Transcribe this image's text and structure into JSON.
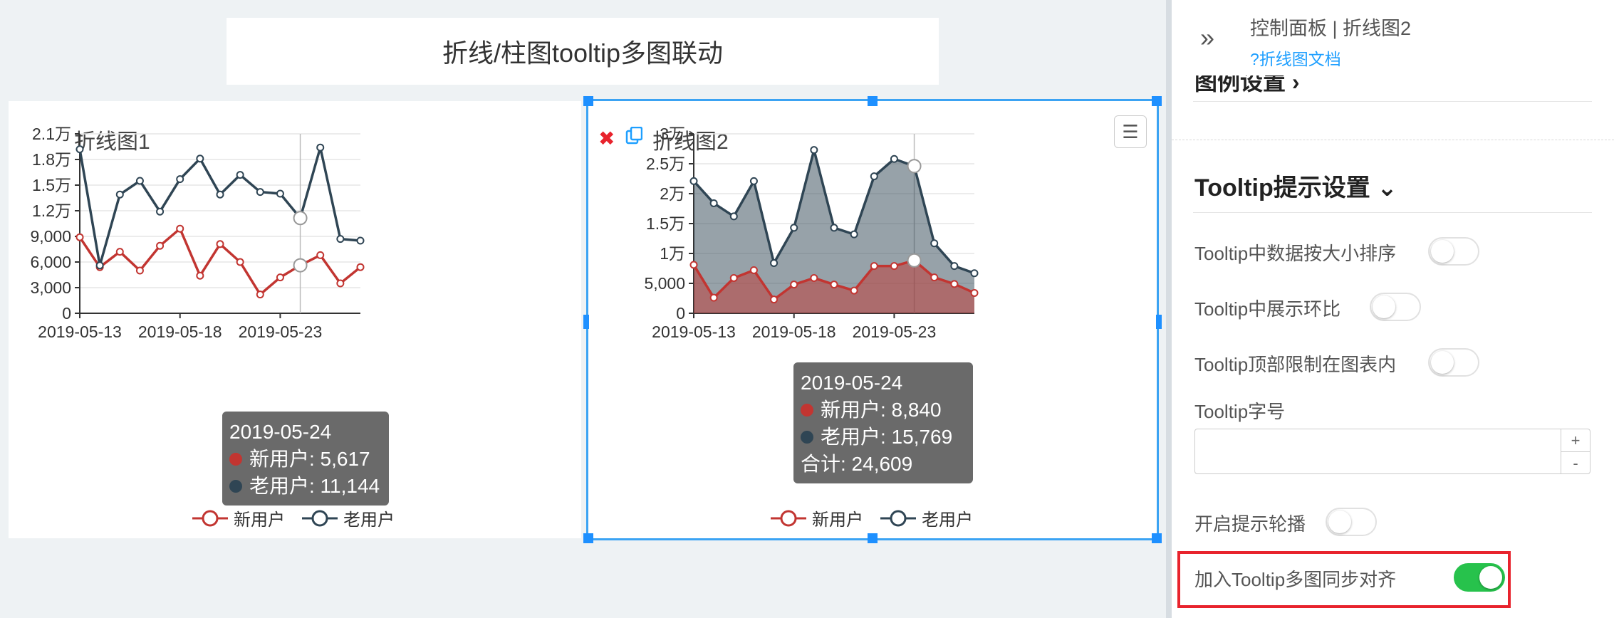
{
  "page_title": "折线/柱图tooltip多图联动",
  "colors": {
    "new_user": "#c23531",
    "old_user": "#2f4554",
    "accent": "#1e9fff",
    "toggle_on": "#27c24c",
    "highlight": "#e8232d"
  },
  "chart1": {
    "title": "折线图1",
    "tooltip": {
      "date": "2019-05-24",
      "rows": [
        {
          "label": "新用户: 5,617"
        },
        {
          "label": "老用户: 11,144"
        }
      ]
    },
    "legend": [
      "新用户",
      "老用户"
    ]
  },
  "chart2": {
    "title": "折线图2",
    "close_icon": "close-icon",
    "copy_icon": "copy-icon",
    "menu_icon": "hamburger-menu-icon",
    "tooltip": {
      "date": "2019-05-24",
      "rows": [
        {
          "label": "新用户: 8,840"
        },
        {
          "label": "老用户: 15,769"
        },
        {
          "label": "合计: 24,609"
        }
      ]
    },
    "legend": [
      "新用户",
      "老用户"
    ]
  },
  "chart_data": [
    {
      "type": "line",
      "title": "折线图1",
      "x": [
        "2019-05-13",
        "2019-05-14",
        "2019-05-15",
        "2019-05-16",
        "2019-05-17",
        "2019-05-18",
        "2019-05-19",
        "2019-05-20",
        "2019-05-21",
        "2019-05-22",
        "2019-05-23",
        "2019-05-24",
        "2019-05-25",
        "2019-05-26",
        "2019-05-27"
      ],
      "x_tick_labels": [
        "2019-05-13",
        "2019-05-18",
        "2019-05-23"
      ],
      "y_tick_labels": [
        "0",
        "3,000",
        "6,000",
        "9,000",
        "1.2万",
        "1.5万",
        "1.8万",
        "2.1万"
      ],
      "ylim": [
        0,
        21000
      ],
      "grid": true,
      "legend_position": "bottom",
      "series": [
        {
          "name": "新用户",
          "values": [
            8900,
            5400,
            7200,
            5000,
            7900,
            9900,
            4400,
            8100,
            6000,
            2200,
            4200,
            5617,
            6800,
            3500,
            5400
          ]
        },
        {
          "name": "老用户",
          "values": [
            19200,
            5600,
            13900,
            15500,
            11900,
            15700,
            18100,
            13900,
            16200,
            14200,
            14000,
            11144,
            19400,
            8700,
            8500
          ]
        }
      ],
      "highlighted_x": "2019-05-24"
    },
    {
      "type": "area",
      "title": "折线图2",
      "x": [
        "2019-05-13",
        "2019-05-14",
        "2019-05-15",
        "2019-05-16",
        "2019-05-17",
        "2019-05-18",
        "2019-05-19",
        "2019-05-20",
        "2019-05-21",
        "2019-05-22",
        "2019-05-23",
        "2019-05-24",
        "2019-05-25",
        "2019-05-26",
        "2019-05-27"
      ],
      "x_tick_labels": [
        "2019-05-13",
        "2019-05-18",
        "2019-05-23"
      ],
      "y_tick_labels": [
        "0",
        "5,000",
        "1万",
        "1.5万",
        "2万",
        "2.5万",
        "3万"
      ],
      "ylim": [
        0,
        30000
      ],
      "grid": true,
      "legend_position": "bottom",
      "series": [
        {
          "name": "新用户",
          "values": [
            8100,
            2600,
            5900,
            7200,
            2300,
            4800,
            5900,
            4800,
            3800,
            7900,
            7900,
            8840,
            6000,
            4900,
            3400
          ]
        },
        {
          "name": "老用户",
          "values": [
            22100,
            18400,
            16200,
            22100,
            8400,
            14300,
            27300,
            14300,
            13200,
            22900,
            25800,
            24609,
            11700,
            7900,
            6700
          ]
        }
      ],
      "highlighted_x": "2019-05-24"
    }
  ],
  "right_panel": {
    "title": "控制面板 | 折线图2",
    "doc_link": "?折线图文档",
    "collapse_icon": "double-chevron-right-icon",
    "cut_section_label": "图例设置 ›",
    "section_title": "Tooltip提示设置 ⌄",
    "settings": {
      "sort": {
        "label": "Tooltip中数据按大小排序",
        "on": false
      },
      "ratio": {
        "label": "Tooltip中展示环比",
        "on": false
      },
      "limit_top": {
        "label": "Tooltip顶部限制在图表内",
        "on": false
      },
      "font_size": {
        "label": "Tooltip字号",
        "value": "",
        "plus": "+",
        "minus": "-"
      },
      "carousel": {
        "label": "开启提示轮播",
        "on": false
      },
      "sync_align": {
        "label": "加入Tooltip多图同步对齐",
        "on": true
      }
    }
  }
}
